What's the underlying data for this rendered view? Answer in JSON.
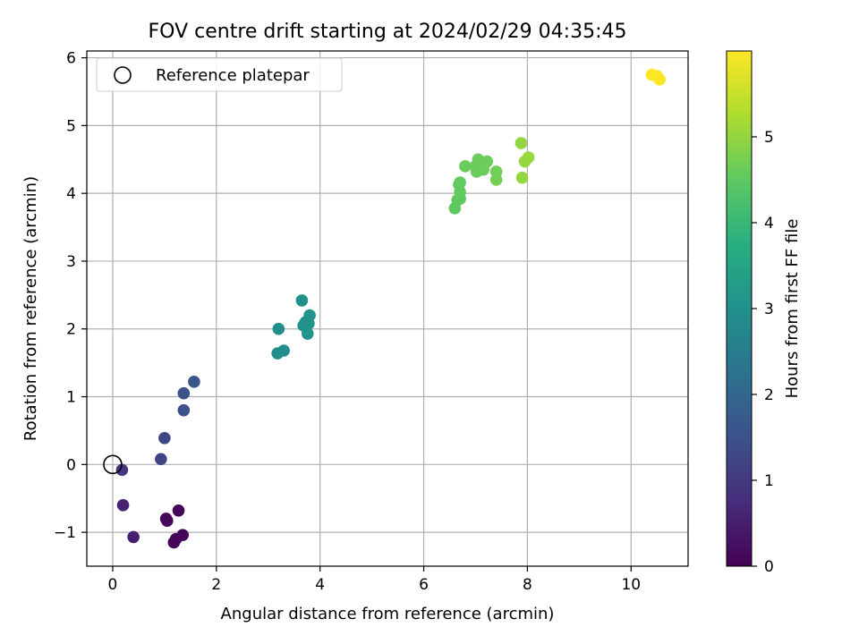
{
  "chart_data": {
    "type": "scatter",
    "title": "FOV centre drift starting at 2024/02/29 04:35:45",
    "xlabel": "Angular distance from reference (arcmin)",
    "ylabel": "Rotation from reference (arcmin)",
    "xlim": [
      -0.5,
      11.1
    ],
    "ylim": [
      -1.5,
      6.1
    ],
    "xticks": [
      0,
      2,
      4,
      6,
      8,
      10
    ],
    "yticks": [
      -1,
      0,
      1,
      2,
      3,
      4,
      5,
      6
    ],
    "grid": true,
    "legend": {
      "placement": "top-left",
      "entries": [
        "Reference platepar"
      ]
    },
    "reference_point": {
      "x": 0,
      "y": 0,
      "label": "Reference platepar"
    },
    "colorbar": {
      "label": "Hours from first FF file",
      "range": [
        0,
        6.0
      ],
      "ticks": [
        0,
        1,
        2,
        3,
        4,
        5
      ],
      "colormap": "viridis"
    },
    "points": [
      {
        "x": 0.18,
        "y": -0.08,
        "hours": 0.9
      },
      {
        "x": 0.2,
        "y": -0.6,
        "hours": 0.6
      },
      {
        "x": 0.4,
        "y": -1.07,
        "hours": 0.5
      },
      {
        "x": 1.03,
        "y": -0.8,
        "hours": 0.1
      },
      {
        "x": 1.05,
        "y": -0.83,
        "hours": 0.1
      },
      {
        "x": 1.27,
        "y": -0.68,
        "hours": 0.05
      },
      {
        "x": 1.35,
        "y": -1.04,
        "hours": 0.05
      },
      {
        "x": 1.22,
        "y": -1.1,
        "hours": 0.05
      },
      {
        "x": 1.18,
        "y": -1.15,
        "hours": 0.05
      },
      {
        "x": 0.93,
        "y": 0.08,
        "hours": 1.2
      },
      {
        "x": 1.0,
        "y": 0.39,
        "hours": 1.25
      },
      {
        "x": 1.37,
        "y": 0.8,
        "hours": 1.45
      },
      {
        "x": 1.37,
        "y": 1.05,
        "hours": 1.5
      },
      {
        "x": 1.57,
        "y": 1.22,
        "hours": 1.6
      },
      {
        "x": 3.18,
        "y": 1.64,
        "hours": 2.9
      },
      {
        "x": 3.3,
        "y": 1.68,
        "hours": 2.9
      },
      {
        "x": 3.2,
        "y": 2.0,
        "hours": 2.95
      },
      {
        "x": 3.65,
        "y": 2.42,
        "hours": 3.0
      },
      {
        "x": 3.68,
        "y": 2.05,
        "hours": 3.0
      },
      {
        "x": 3.72,
        "y": 2.1,
        "hours": 3.0
      },
      {
        "x": 3.8,
        "y": 2.2,
        "hours": 3.05
      },
      {
        "x": 3.78,
        "y": 2.08,
        "hours": 3.05
      },
      {
        "x": 3.76,
        "y": 1.93,
        "hours": 3.05
      },
      {
        "x": 6.6,
        "y": 3.78,
        "hours": 4.5
      },
      {
        "x": 6.65,
        "y": 3.9,
        "hours": 4.5
      },
      {
        "x": 6.7,
        "y": 3.92,
        "hours": 4.5
      },
      {
        "x": 6.7,
        "y": 4.02,
        "hours": 4.55
      },
      {
        "x": 6.68,
        "y": 4.13,
        "hours": 4.55
      },
      {
        "x": 6.7,
        "y": 4.16,
        "hours": 4.55
      },
      {
        "x": 6.8,
        "y": 4.4,
        "hours": 4.6
      },
      {
        "x": 7.0,
        "y": 4.4,
        "hours": 4.6
      },
      {
        "x": 7.02,
        "y": 4.32,
        "hours": 4.6
      },
      {
        "x": 7.05,
        "y": 4.5,
        "hours": 4.6
      },
      {
        "x": 7.15,
        "y": 4.35,
        "hours": 4.6
      },
      {
        "x": 7.22,
        "y": 4.47,
        "hours": 4.65
      },
      {
        "x": 7.4,
        "y": 4.32,
        "hours": 4.7
      },
      {
        "x": 7.4,
        "y": 4.2,
        "hours": 4.7
      },
      {
        "x": 7.88,
        "y": 4.74,
        "hours": 5.0
      },
      {
        "x": 7.9,
        "y": 4.23,
        "hours": 5.0
      },
      {
        "x": 7.95,
        "y": 4.47,
        "hours": 5.0
      },
      {
        "x": 8.02,
        "y": 4.53,
        "hours": 5.05
      },
      {
        "x": 10.4,
        "y": 5.75,
        "hours": 6.0
      },
      {
        "x": 10.5,
        "y": 5.73,
        "hours": 6.0
      },
      {
        "x": 10.55,
        "y": 5.68,
        "hours": 6.0
      }
    ]
  }
}
